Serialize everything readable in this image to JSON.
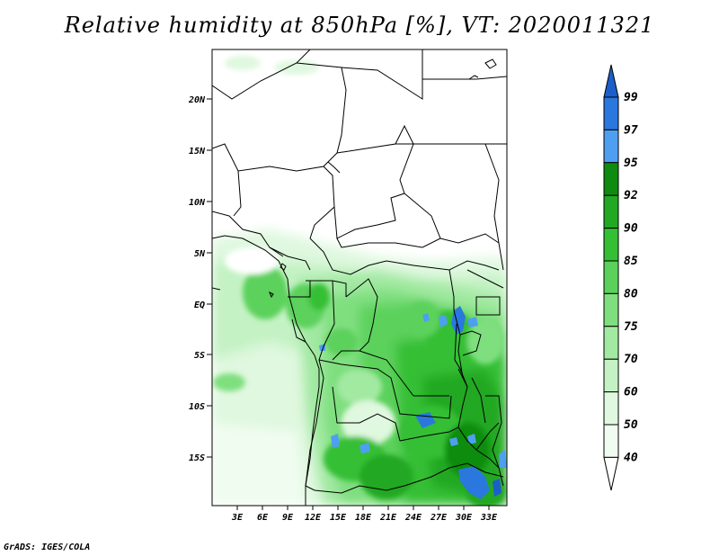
{
  "title": "Relative humidity at 850hPa [%], VT: 2020011321",
  "credit": "GrADS: IGES/COLA",
  "lat_labels": [
    "20N",
    "15N",
    "10N",
    "5N",
    "EQ",
    "5S",
    "10S",
    "15S"
  ],
  "lon_labels": [
    "3E",
    "6E",
    "9E",
    "12E",
    "15E",
    "18E",
    "21E",
    "24E",
    "27E",
    "30E",
    "33E"
  ],
  "colorbar": {
    "levels": [
      "99",
      "97",
      "95",
      "92",
      "90",
      "85",
      "80",
      "75",
      "70",
      "60",
      "50",
      "40"
    ],
    "colors": [
      "#1c5fc9",
      "#2a78de",
      "#4f9ff0",
      "#0f8c10",
      "#23a823",
      "#35bf35",
      "#5bd15b",
      "#7fdf7f",
      "#a2e9a2",
      "#c4f2c4",
      "#dff8df",
      "#f0fcf0",
      "#ffffff"
    ]
  }
}
